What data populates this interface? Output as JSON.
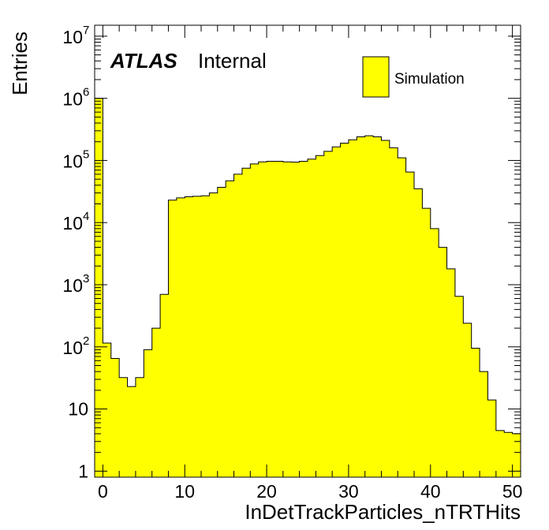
{
  "chart_data": {
    "type": "bar",
    "histogram_style": "filled-step",
    "xlabel": "InDetTrackParticles_nTRTHits",
    "ylabel": "Entries",
    "ylog": true,
    "xlim": [
      -1,
      51
    ],
    "ylim": [
      0.8,
      15000000
    ],
    "x_ticks": [
      {
        "value": 0,
        "label": "0"
      },
      {
        "value": 10,
        "label": "10"
      },
      {
        "value": 20,
        "label": "20"
      },
      {
        "value": 30,
        "label": "30"
      },
      {
        "value": 40,
        "label": "40"
      },
      {
        "value": 50,
        "label": "50"
      }
    ],
    "y_ticks": [
      {
        "value": 1,
        "base": "1",
        "exp": ""
      },
      {
        "value": 10,
        "base": "10",
        "exp": ""
      },
      {
        "value": 100,
        "base": "10",
        "exp": "2"
      },
      {
        "value": 1000,
        "base": "10",
        "exp": "3"
      },
      {
        "value": 10000,
        "base": "10",
        "exp": "4"
      },
      {
        "value": 100000,
        "base": "10",
        "exp": "5"
      },
      {
        "value": 1000000,
        "base": "10",
        "exp": "6"
      },
      {
        "value": 10000000,
        "base": "10",
        "exp": "7"
      }
    ],
    "bin_edges_start": -1,
    "bin_width": 1,
    "values": [
      1000000,
      115,
      65,
      32,
      23,
      32,
      90,
      200,
      700,
      23000,
      25000,
      26000,
      26500,
      27000,
      30000,
      37000,
      47000,
      60000,
      75000,
      88000,
      95000,
      97000,
      97000,
      95000,
      94000,
      97000,
      105000,
      120000,
      140000,
      165000,
      190000,
      215000,
      240000,
      250000,
      240000,
      210000,
      160000,
      110000,
      65000,
      35000,
      17000,
      8000,
      4000,
      1800,
      650,
      240,
      95,
      40,
      14,
      4.5,
      4.2,
      4
    ],
    "fill_color": "#ffff00",
    "line_color": "#000000",
    "legend": {
      "position": "top-right",
      "entries": [
        {
          "label": "Simulation",
          "color": "#ffff00"
        }
      ]
    },
    "annotation": {
      "bold": "ATLAS",
      "text": "Internal"
    }
  }
}
